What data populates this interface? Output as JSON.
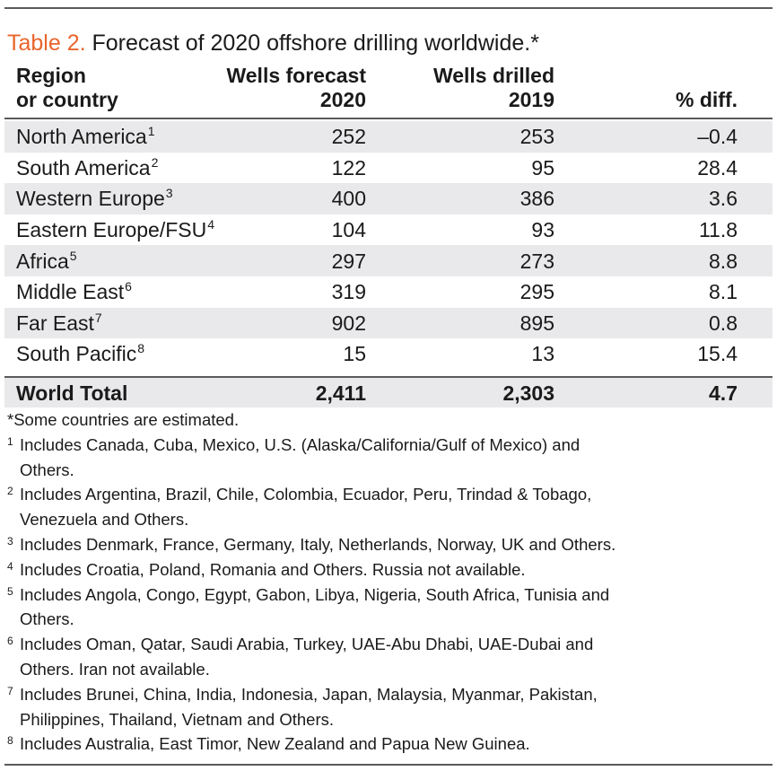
{
  "title": {
    "label": "Table 2.",
    "text": " Forecast of 2020 offshore drilling worldwide.*"
  },
  "headers": {
    "region": [
      "Region",
      "or country"
    ],
    "forecast": [
      "Wells forecast",
      "2020"
    ],
    "drilled": [
      "Wells drilled",
      "2019"
    ],
    "diff": "% diff."
  },
  "rows": [
    {
      "region": "North America",
      "note": "1",
      "forecast": "252",
      "drilled": "253",
      "diff": "–0.4"
    },
    {
      "region": "South America",
      "note": "2",
      "forecast": "122",
      "drilled": "95",
      "diff": "28.4"
    },
    {
      "region": "Western Europe",
      "note": "3",
      "forecast": "400",
      "drilled": "386",
      "diff": "3.6"
    },
    {
      "region": "Eastern Europe/FSU",
      "note": "4",
      "forecast": "104",
      "drilled": "93",
      "diff": "11.8"
    },
    {
      "region": "Africa",
      "note": "5",
      "forecast": "297",
      "drilled": "273",
      "diff": "8.8"
    },
    {
      "region": "Middle East",
      "note": "6",
      "forecast": "319",
      "drilled": "295",
      "diff": "8.1"
    },
    {
      "region": "Far East",
      "note": "7",
      "forecast": "902",
      "drilled": "895",
      "diff": "0.8"
    },
    {
      "region": "South Pacific",
      "note": "8",
      "forecast": "15",
      "drilled": "13",
      "diff": "15.4"
    }
  ],
  "total": {
    "region": "World Total",
    "forecast": "2,411",
    "drilled": "2,303",
    "diff": "4.7"
  },
  "notes": {
    "star": "*Some countries are estimated.",
    "items": [
      {
        "num": "1",
        "text": "Includes Canada, Cuba, Mexico, U.S. (Alaska/California/Gulf of Mexico) and",
        "cont": "Others."
      },
      {
        "num": "2",
        "text": "Includes Argentina, Brazil, Chile, Colombia, Ecuador, Peru, Trindad & Tobago,",
        "cont": "Venezuela and Others."
      },
      {
        "num": "3",
        "text": "Includes Denmark, France, Germany, Italy, Netherlands, Norway, UK and Others.",
        "cont": ""
      },
      {
        "num": "4",
        "text": "Includes Croatia, Poland, Romania and Others. Russia not available.",
        "cont": ""
      },
      {
        "num": "5",
        "text": "Includes Angola, Congo, Egypt, Gabon, Libya, Nigeria, South Africa, Tunisia and",
        "cont": "Others."
      },
      {
        "num": "6",
        "text": "Includes Oman, Qatar, Saudi Arabia, Turkey, UAE-Abu Dhabi, UAE-Dubai and",
        "cont": "Others. Iran not available."
      },
      {
        "num": "7",
        "text": "Includes Brunei, China, India, Indonesia, Japan, Malaysia, Myanmar, Pakistan,",
        "cont": "Philippines, Thailand, Vietnam and Others."
      },
      {
        "num": "8",
        "text": "Includes Australia, East Timor, New Zealand and Papua New Guinea.",
        "cont": ""
      }
    ]
  },
  "colors": {
    "accent": "#e8652b",
    "shade": "#e9e9eb",
    "rule": "#5a5a5a"
  }
}
